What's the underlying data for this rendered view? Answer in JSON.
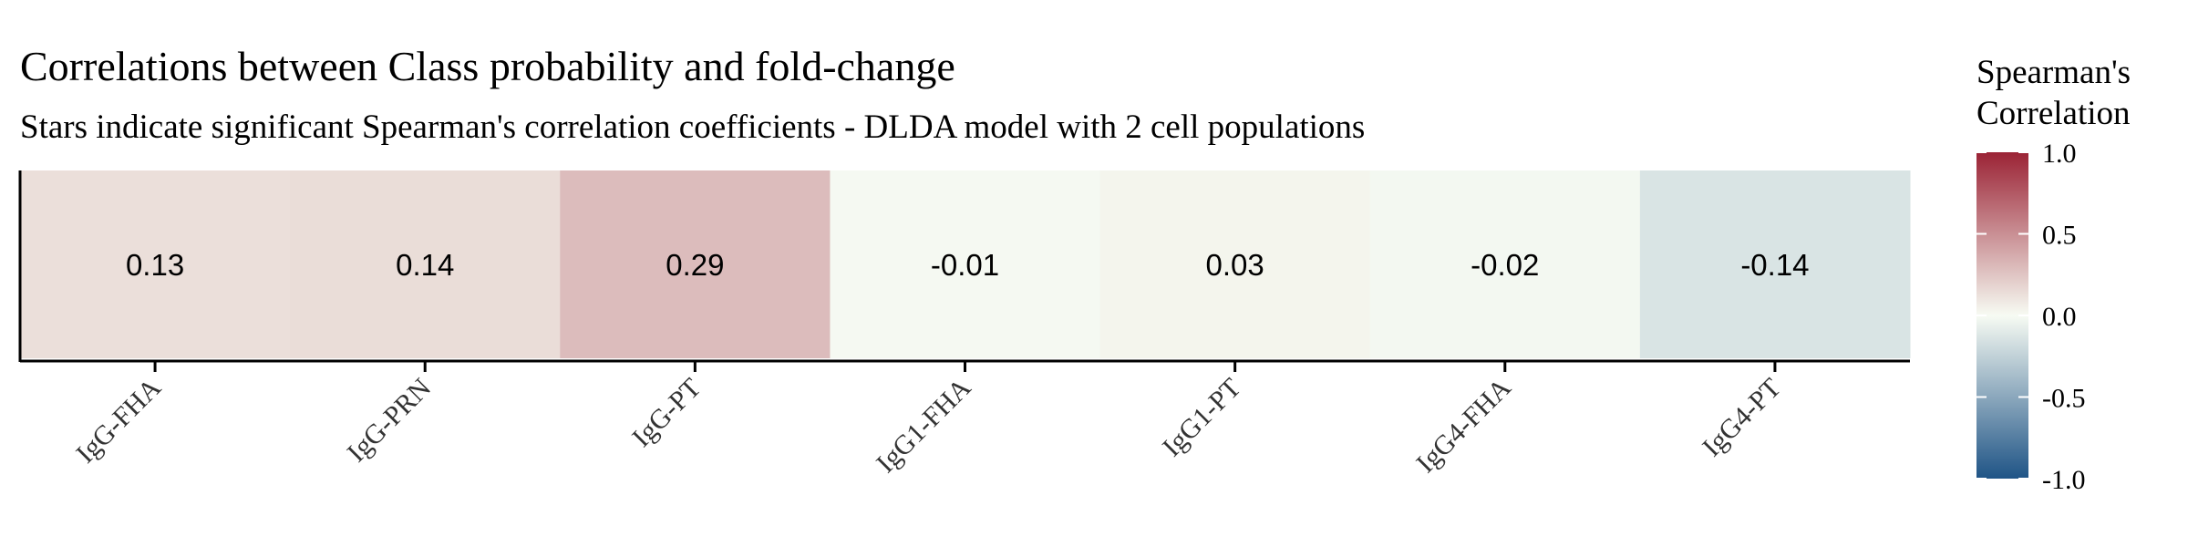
{
  "chart_data": {
    "type": "heatmap",
    "title": "Correlations between Class probability and fold-change",
    "subtitle": "Stars indicate significant Spearman's correlation coefficients - DLDA model with 2 cell populations",
    "categories": [
      "IgG-FHA",
      "IgG-PRN",
      "IgG-PT",
      "IgG1-FHA",
      "IgG1-PT",
      "IgG4-FHA",
      "IgG4-PT"
    ],
    "values": [
      0.13,
      0.14,
      0.29,
      -0.01,
      0.03,
      -0.02,
      -0.14
    ],
    "value_labels": [
      "0.13",
      "0.14",
      "0.29",
      "-0.01",
      "0.03",
      "-0.02",
      "-0.14"
    ],
    "legend": {
      "title_line1": "Spearman's",
      "title_line2": "Correlation",
      "range": [
        -1.0,
        1.0
      ],
      "ticks": [
        1.0,
        0.5,
        0.0,
        -0.5,
        -1.0
      ],
      "tick_labels": [
        "1.0",
        "0.5",
        "0.0",
        "-0.5",
        "-1.0"
      ],
      "placement": "right"
    },
    "colors": {
      "high": "#9b2335",
      "mid": "#f7fbf3",
      "low": "#1f5486"
    }
  }
}
